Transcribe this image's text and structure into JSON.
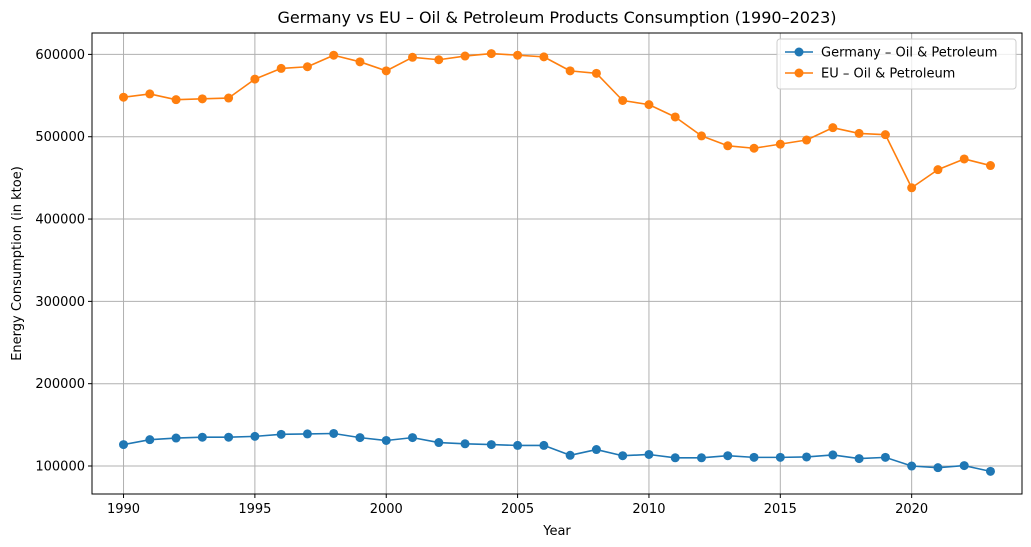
{
  "chart_data": {
    "type": "line",
    "title": "Germany vs EU – Oil & Petroleum Products Consumption (1990–2023)",
    "xlabel": "Year",
    "ylabel": "Energy Consumption (in ktoe)",
    "x": [
      1990,
      1991,
      1992,
      1993,
      1994,
      1995,
      1996,
      1997,
      1998,
      1999,
      2000,
      2001,
      2002,
      2003,
      2004,
      2005,
      2006,
      2007,
      2008,
      2009,
      2010,
      2011,
      2012,
      2013,
      2014,
      2015,
      2016,
      2017,
      2018,
      2019,
      2020,
      2021,
      2022,
      2023
    ],
    "xlim": [
      1988.8,
      2024.2
    ],
    "ylim": [
      66000,
      626000
    ],
    "xticks": [
      1990,
      1995,
      2000,
      2005,
      2010,
      2015,
      2020
    ],
    "yticks": [
      100000,
      200000,
      300000,
      400000,
      500000,
      600000
    ],
    "grid": true,
    "legend_position": "top-right",
    "series": [
      {
        "name": "Germany – Oil & Petroleum",
        "color": "#1f77b4",
        "values": [
          126000,
          132000,
          134000,
          135000,
          135000,
          136000,
          138500,
          139000,
          139500,
          134500,
          131000,
          134500,
          128500,
          127000,
          126000,
          125000,
          125000,
          113000,
          120000,
          112500,
          114000,
          110000,
          110000,
          112500,
          110500,
          110500,
          111000,
          113500,
          109000,
          110500,
          100000,
          98000,
          100500,
          93500
        ]
      },
      {
        "name": "EU – Oil & Petroleum",
        "color": "#ff7f0e",
        "values": [
          548000,
          552000,
          545000,
          546000,
          547000,
          570000,
          583000,
          585000,
          599000,
          591000,
          580000,
          596500,
          593500,
          598000,
          601000,
          599000,
          597000,
          580000,
          577000,
          544000,
          539000,
          524000,
          501000,
          489000,
          486000,
          491000,
          496000,
          511000,
          504000,
          502500,
          438000,
          460000,
          473000,
          465000
        ]
      }
    ]
  }
}
